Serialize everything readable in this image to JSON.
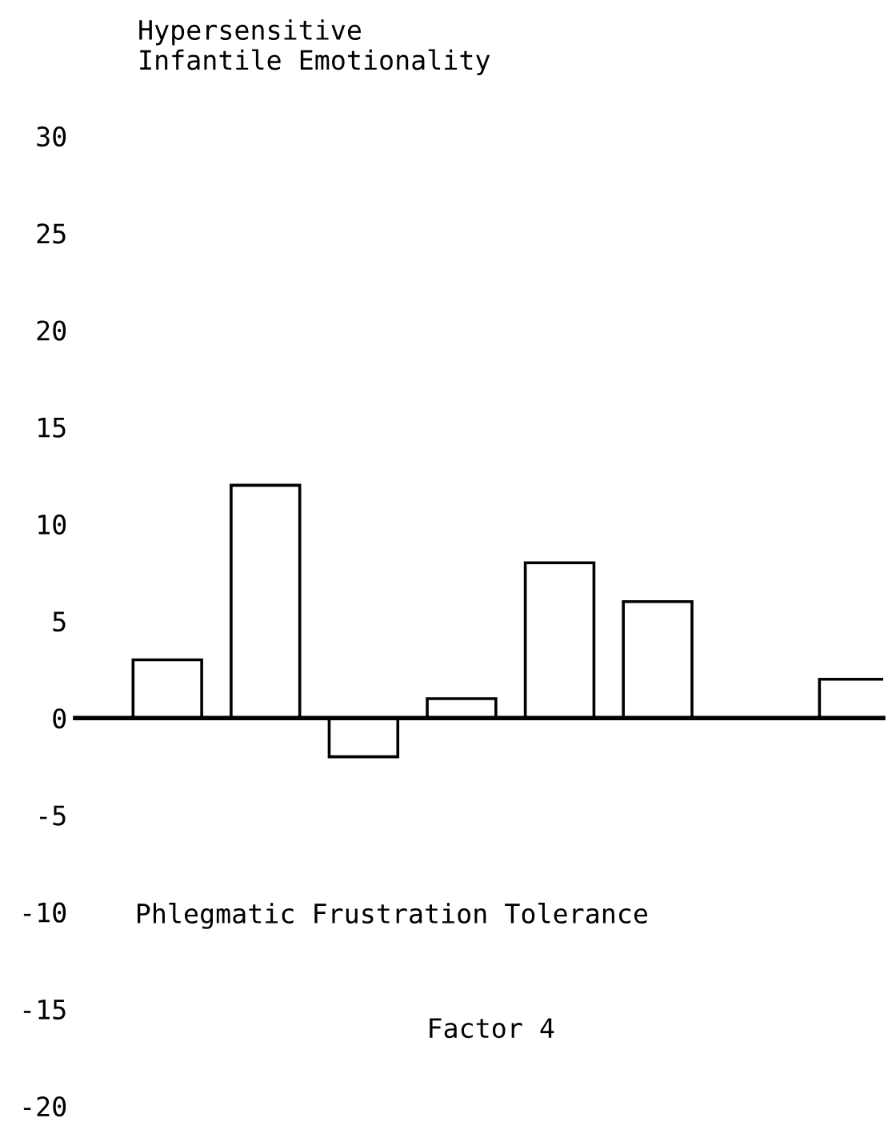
{
  "chart_data": {
    "type": "bar",
    "title": "Hypersensitive\nInfantile Emotionality",
    "categories": [
      null,
      null,
      null,
      null,
      null,
      null,
      null,
      null
    ],
    "values": [
      3,
      12,
      -2,
      1,
      8,
      6,
      null,
      2
    ],
    "color": "#ffffff",
    "ylim": [
      -20,
      30
    ],
    "yticks": [
      -20,
      -15,
      -10,
      -5,
      0,
      5,
      10,
      15,
      20,
      25,
      30
    ],
    "annotations": [
      "Phlegmatic Frustration Tolerance",
      "Factor 4"
    ],
    "legend": false
  }
}
